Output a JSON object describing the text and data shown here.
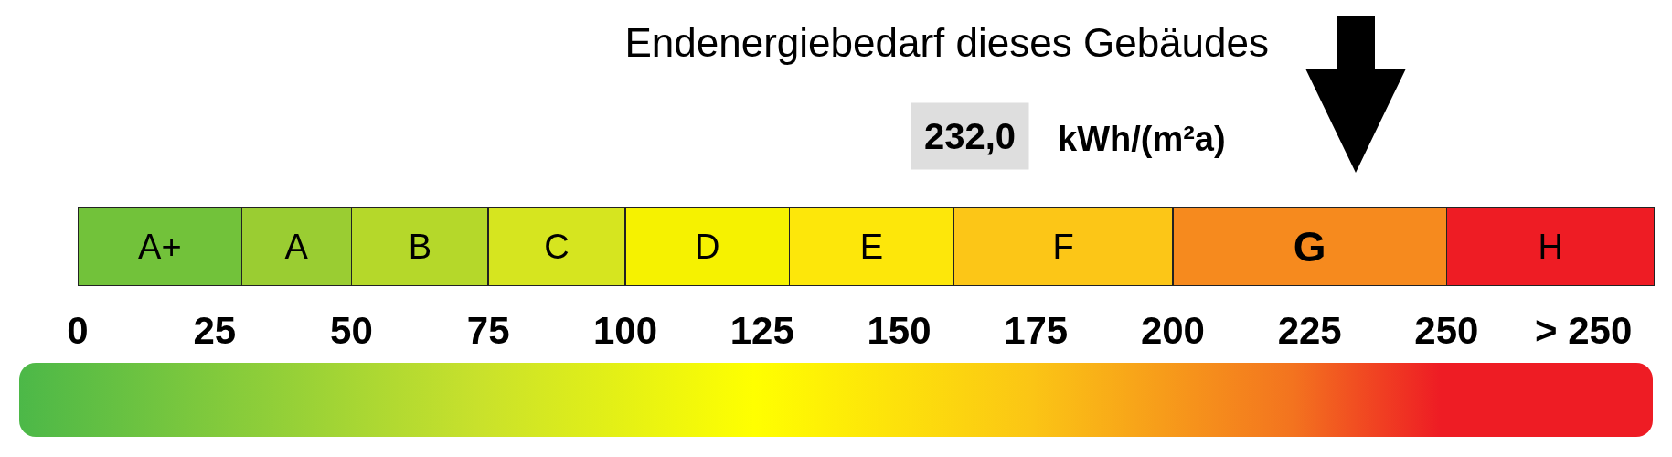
{
  "chart_data": {
    "type": "bar",
    "orientation": "horizontal",
    "stacked": true,
    "title": "Endenergiebedarf dieses Gebäudes",
    "categories": [
      null
    ],
    "series": [
      {
        "name": "A+",
        "color": "#72c23a",
        "values": [
          30
        ]
      },
      {
        "name": "A",
        "color": "#9acd32",
        "values": [
          20
        ]
      },
      {
        "name": "B",
        "color": "#b5d82a",
        "values": [
          25
        ]
      },
      {
        "name": "C",
        "color": "#d6e51f",
        "values": [
          25
        ]
      },
      {
        "name": "D",
        "color": "#f6f200",
        "values": [
          30
        ]
      },
      {
        "name": "E",
        "color": "#fde70a",
        "values": [
          30
        ]
      },
      {
        "name": "F",
        "color": "#fcc617",
        "values": [
          40
        ]
      },
      {
        "name": "G",
        "color": "#f68a1e",
        "values": [
          50
        ]
      },
      {
        "name": "H",
        "color": "#ee1c24",
        "values": [
          38
        ]
      }
    ],
    "xlim": [
      0,
      288
    ],
    "xticks": [
      0,
      25,
      50,
      75,
      100,
      125,
      150,
      175,
      200,
      225,
      250,
      {
        "value": 275,
        "label": "> 250"
      }
    ],
    "tick_labels": "x",
    "annotations": [
      "232,0",
      "kWh/(m²a)"
    ]
  }
}
